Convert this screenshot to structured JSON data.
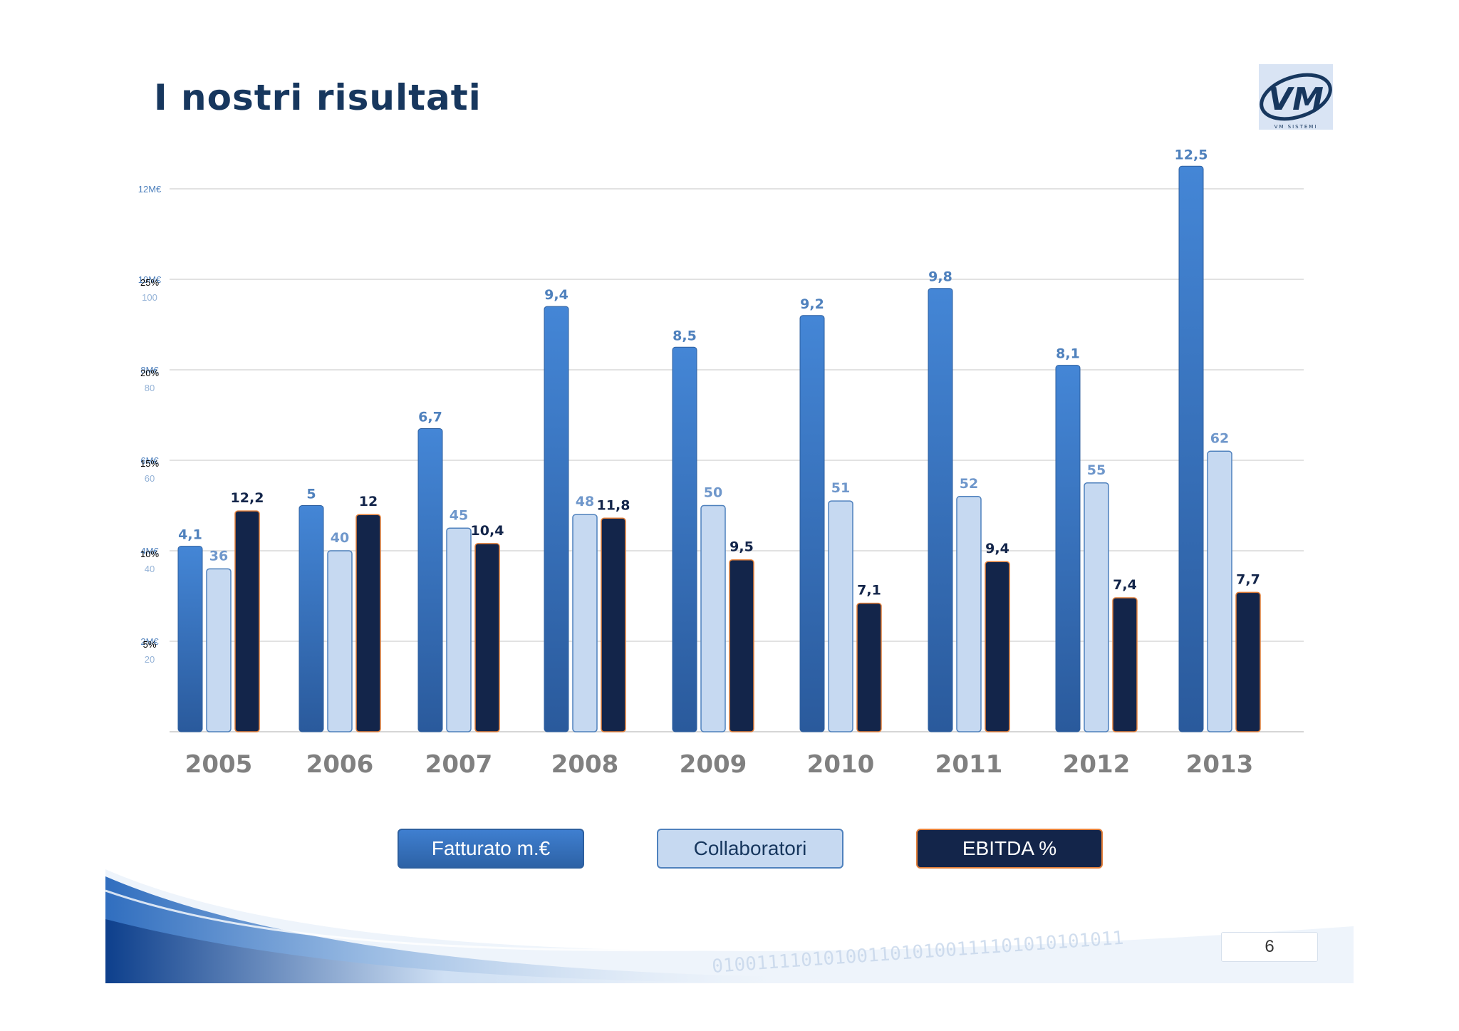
{
  "title": "I nostri risultati",
  "logo": {
    "text": "VM",
    "subtext": "VM SISTEMI"
  },
  "page_number": "6",
  "legend": {
    "fatturato": "Fatturato m.€",
    "collaboratori": "Collaboratori",
    "ebitda": "EBITDA %"
  },
  "colors": {
    "fatturato": "#3a78c9",
    "collaboratori": "#c6d9f1",
    "ebitda": "#13254a",
    "ebitda_border": "#e4803a",
    "title": "#17375e",
    "year_label": "#808080"
  },
  "chart_data": {
    "type": "bar",
    "categories": [
      "2005",
      "2006",
      "2007",
      "2008",
      "2009",
      "2010",
      "2011",
      "2012",
      "2013"
    ],
    "series": [
      {
        "name": "Fatturato m.€",
        "values": [
          4.1,
          5,
          6.7,
          9.4,
          8.5,
          9.2,
          9.8,
          8.1,
          12.5
        ],
        "labels": [
          "4,1",
          "5",
          "6,7",
          "9,4",
          "8,5",
          "9,2",
          "9,8",
          "8,1",
          "12,5"
        ]
      },
      {
        "name": "Collaboratori",
        "values": [
          36,
          40,
          45,
          48,
          50,
          51,
          52,
          55,
          62
        ],
        "labels": [
          "36",
          "40",
          "45",
          "48",
          "50",
          "51",
          "52",
          "55",
          "62"
        ]
      },
      {
        "name": "EBITDA %",
        "values": [
          12.2,
          12,
          10.4,
          11.8,
          9.5,
          7.1,
          9.4,
          7.4,
          7.7
        ],
        "labels": [
          "12,2",
          "12",
          "10,4",
          "11,8",
          "9,5",
          "7,1",
          "9,4",
          "7,4",
          "7,7"
        ]
      }
    ],
    "axes": {
      "revenue": {
        "ticks": [
          "2M€",
          "4M€",
          "6M€",
          "8M€",
          "10M€",
          "12M€"
        ],
        "ylim": [
          0,
          12
        ]
      },
      "ebitda": {
        "ticks": [
          "5%",
          "10%",
          "15%",
          "20%",
          "25%"
        ],
        "ylim": [
          0,
          30
        ]
      },
      "staff": {
        "ticks": [
          "20",
          "40",
          "60",
          "80",
          "100"
        ],
        "ylim": [
          0,
          120
        ]
      }
    },
    "grid": true,
    "legend_position": "bottom"
  }
}
